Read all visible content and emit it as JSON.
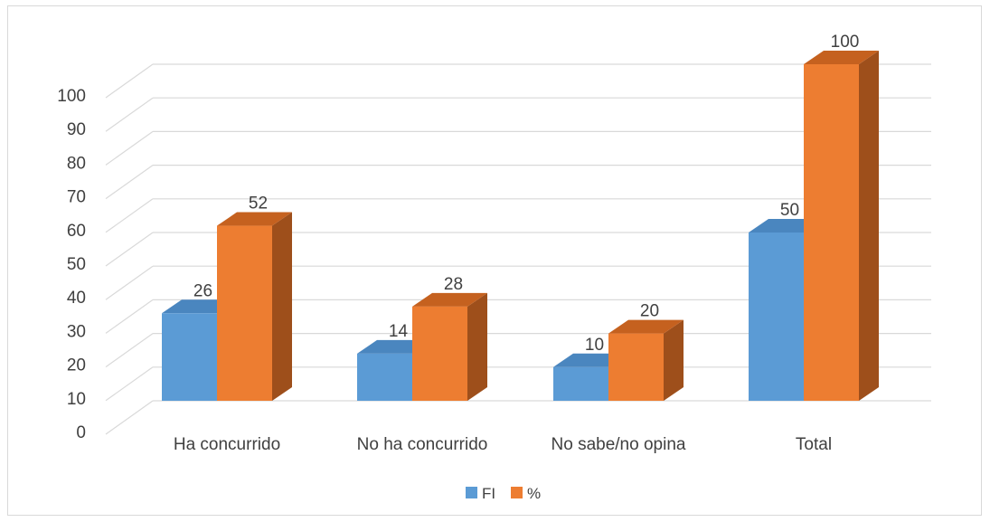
{
  "chart_data": {
    "type": "bar",
    "style": "3d-clustered-column",
    "categories": [
      "Ha concurrido",
      "No ha concurrido",
      "No sabe/no opina",
      "Total"
    ],
    "series": [
      {
        "name": "FI",
        "values": [
          26,
          14,
          10,
          50
        ],
        "color": "#5b9bd5",
        "side_color": "#3f7dba",
        "top_color": "#4a86bf"
      },
      {
        "name": "%",
        "values": [
          52,
          28,
          20,
          100
        ],
        "color": "#ed7d31",
        "side_color": "#9e4f1b",
        "top_color": "#c5611f"
      }
    ],
    "y_ticks": [
      "0",
      "10",
      "20",
      "30",
      "40",
      "50",
      "60",
      "70",
      "80",
      "90",
      "100"
    ],
    "ylim": [
      0,
      100
    ],
    "grid": true,
    "legend_position": "bottom",
    "data_labels": true
  }
}
